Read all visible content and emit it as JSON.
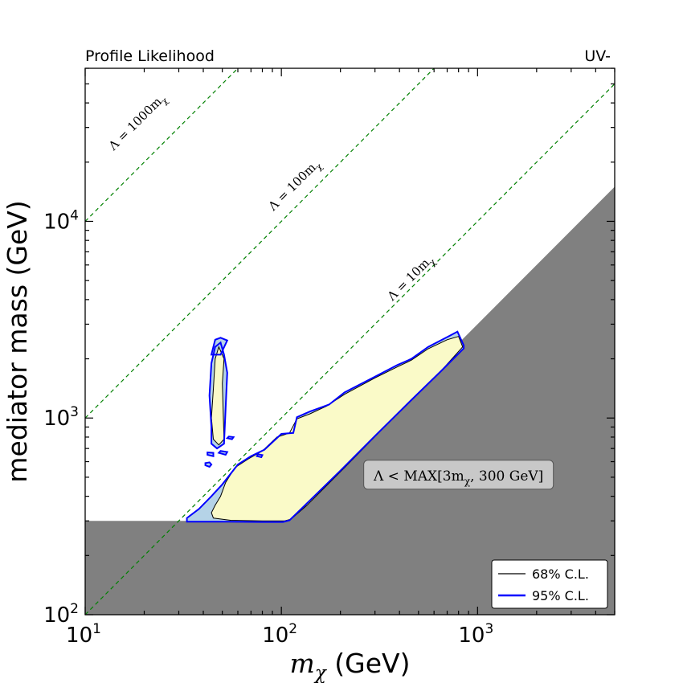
{
  "chart_data": {
    "type": "contour",
    "title_left": "Profile Likelihood",
    "title_right": "UV-",
    "xlabel_main": "m",
    "xlabel_sub": "χ",
    "xlabel_unit": " (GeV)",
    "ylabel": "mediator mass (GeV)",
    "xscale": "log",
    "yscale": "log",
    "xlim": [
      10,
      5000
    ],
    "ylim": [
      100,
      60000
    ],
    "x_ticks": [
      {
        "value": 10,
        "base": "10",
        "exp": "1"
      },
      {
        "value": 100,
        "base": "10",
        "exp": "2"
      },
      {
        "value": 1000,
        "base": "10",
        "exp": "3"
      }
    ],
    "y_ticks": [
      {
        "value": 100,
        "base": "10",
        "exp": "2"
      },
      {
        "value": 1000,
        "base": "10",
        "exp": "3"
      },
      {
        "value": 10000,
        "base": "10",
        "exp": "4"
      }
    ],
    "reference_lines": [
      {
        "label": "Λ = 1000m",
        "sub": "χ",
        "factor": 1000,
        "label_at": [
          19,
          31000
        ]
      },
      {
        "label": "Λ = 100m",
        "sub": "χ",
        "factor": 100,
        "label_at": [
          120,
          14800
        ]
      },
      {
        "label": "Λ = 10m",
        "sub": "χ",
        "factor": 10,
        "label_at": [
          470,
          5000
        ]
      }
    ],
    "excluded_region": {
      "label": "Λ < MAX[3m",
      "label_sub": "χ",
      "label_end": ", 300 GeV]",
      "label_at": [
        800,
        510
      ],
      "boundary": "max(3*m_chi, 300)",
      "color": "#808080"
    },
    "contours": {
      "ci95": {
        "name": "95% C.L.",
        "line_color": "#0000ff",
        "fill_color": "#b5d3e7",
        "regions": [
          [
            [
              33,
              297
            ],
            [
              39,
              297
            ],
            [
              55,
              297
            ],
            [
              80,
              296
            ],
            [
              102,
              296
            ],
            [
              110,
              302
            ],
            [
              130,
              355
            ],
            [
              200,
              540
            ],
            [
              300,
              810
            ],
            [
              450,
              1210
            ],
            [
              650,
              1730
            ],
            [
              850,
              2260
            ],
            [
              850,
              2340
            ],
            [
              790,
              2750
            ],
            [
              700,
              2580
            ],
            [
              560,
              2300
            ],
            [
              460,
              2000
            ],
            [
              390,
              1860
            ],
            [
              310,
              1650
            ],
            [
              210,
              1350
            ],
            [
              175,
              1170
            ],
            [
              140,
              1080
            ],
            [
              120,
              1010
            ],
            [
              115,
              840
            ],
            [
              100,
              830
            ],
            [
              82,
              690
            ],
            [
              70,
              640
            ],
            [
              60,
              580
            ],
            [
              50,
              460
            ],
            [
              44,
              400
            ],
            [
              38,
              345
            ],
            [
              33,
              310
            ]
          ],
          [
            [
              44,
              2100
            ],
            [
              49,
              2100
            ],
            [
              53,
              2480
            ],
            [
              49,
              2560
            ],
            [
              46,
              2500
            ],
            [
              45,
              2300
            ]
          ],
          [
            [
              44,
              740
            ],
            [
              47,
              700
            ],
            [
              51,
              740
            ],
            [
              53,
              1700
            ],
            [
              51,
              2100
            ],
            [
              49,
              2420
            ],
            [
              46,
              2300
            ],
            [
              44,
              1900
            ],
            [
              43,
              1300
            ],
            [
              44,
              900
            ]
          ],
          [
            [
              41,
              575
            ],
            [
              43,
              565
            ],
            [
              44,
              580
            ],
            [
              43,
              595
            ],
            [
              41,
              590
            ]
          ],
          [
            [
              42,
              650
            ],
            [
              45,
              640
            ],
            [
              45,
              665
            ],
            [
              42,
              668
            ]
          ],
          [
            [
              48,
              665
            ],
            [
              52,
              650
            ],
            [
              53,
              672
            ],
            [
              49,
              680
            ]
          ],
          [
            [
              53,
              790
            ],
            [
              56,
              780
            ],
            [
              57,
              800
            ],
            [
              54,
              805
            ]
          ],
          [
            [
              75,
              640
            ],
            [
              79,
              632
            ],
            [
              80,
              648
            ],
            [
              76,
              654
            ]
          ]
        ]
      },
      "ci68": {
        "name": "68% C.L.",
        "line_color": "#000000",
        "fill_color": "#fafac8",
        "regions": [
          [
            [
              45,
              310
            ],
            [
              55,
              302
            ],
            [
              80,
              300
            ],
            [
              104,
              300
            ],
            [
              112,
              306
            ],
            [
              135,
              360
            ],
            [
              210,
              560
            ],
            [
              320,
              860
            ],
            [
              460,
              1230
            ],
            [
              660,
              1760
            ],
            [
              840,
              2300
            ],
            [
              800,
              2600
            ],
            [
              700,
              2500
            ],
            [
              560,
              2250
            ],
            [
              460,
              1970
            ],
            [
              390,
              1820
            ],
            [
              300,
              1600
            ],
            [
              210,
              1320
            ],
            [
              170,
              1150
            ],
            [
              140,
              1050
            ],
            [
              120,
              990
            ],
            [
              110,
              840
            ],
            [
              95,
              800
            ],
            [
              80,
              680
            ],
            [
              68,
              620
            ],
            [
              58,
              560
            ],
            [
              52,
              470
            ],
            [
              49,
              400
            ],
            [
              46,
              360
            ],
            [
              44,
              330
            ]
          ],
          [
            [
              45,
              780
            ],
            [
              48,
              730
            ],
            [
              51,
              780
            ],
            [
              50,
              1500
            ],
            [
              51,
              2000
            ],
            [
              48,
              2300
            ],
            [
              46,
              2000
            ],
            [
              45,
              1400
            ],
            [
              44,
              1000
            ]
          ]
        ]
      }
    },
    "legend": {
      "position": "bottom-right",
      "entries": [
        {
          "label": "68% C.L.",
          "color": "#000000"
        },
        {
          "label": "95% C.L.",
          "color": "#0000ff"
        }
      ]
    },
    "colors": {
      "reference_line": "#008000",
      "excluded_fill": "#808080",
      "axis": "#000000"
    }
  }
}
